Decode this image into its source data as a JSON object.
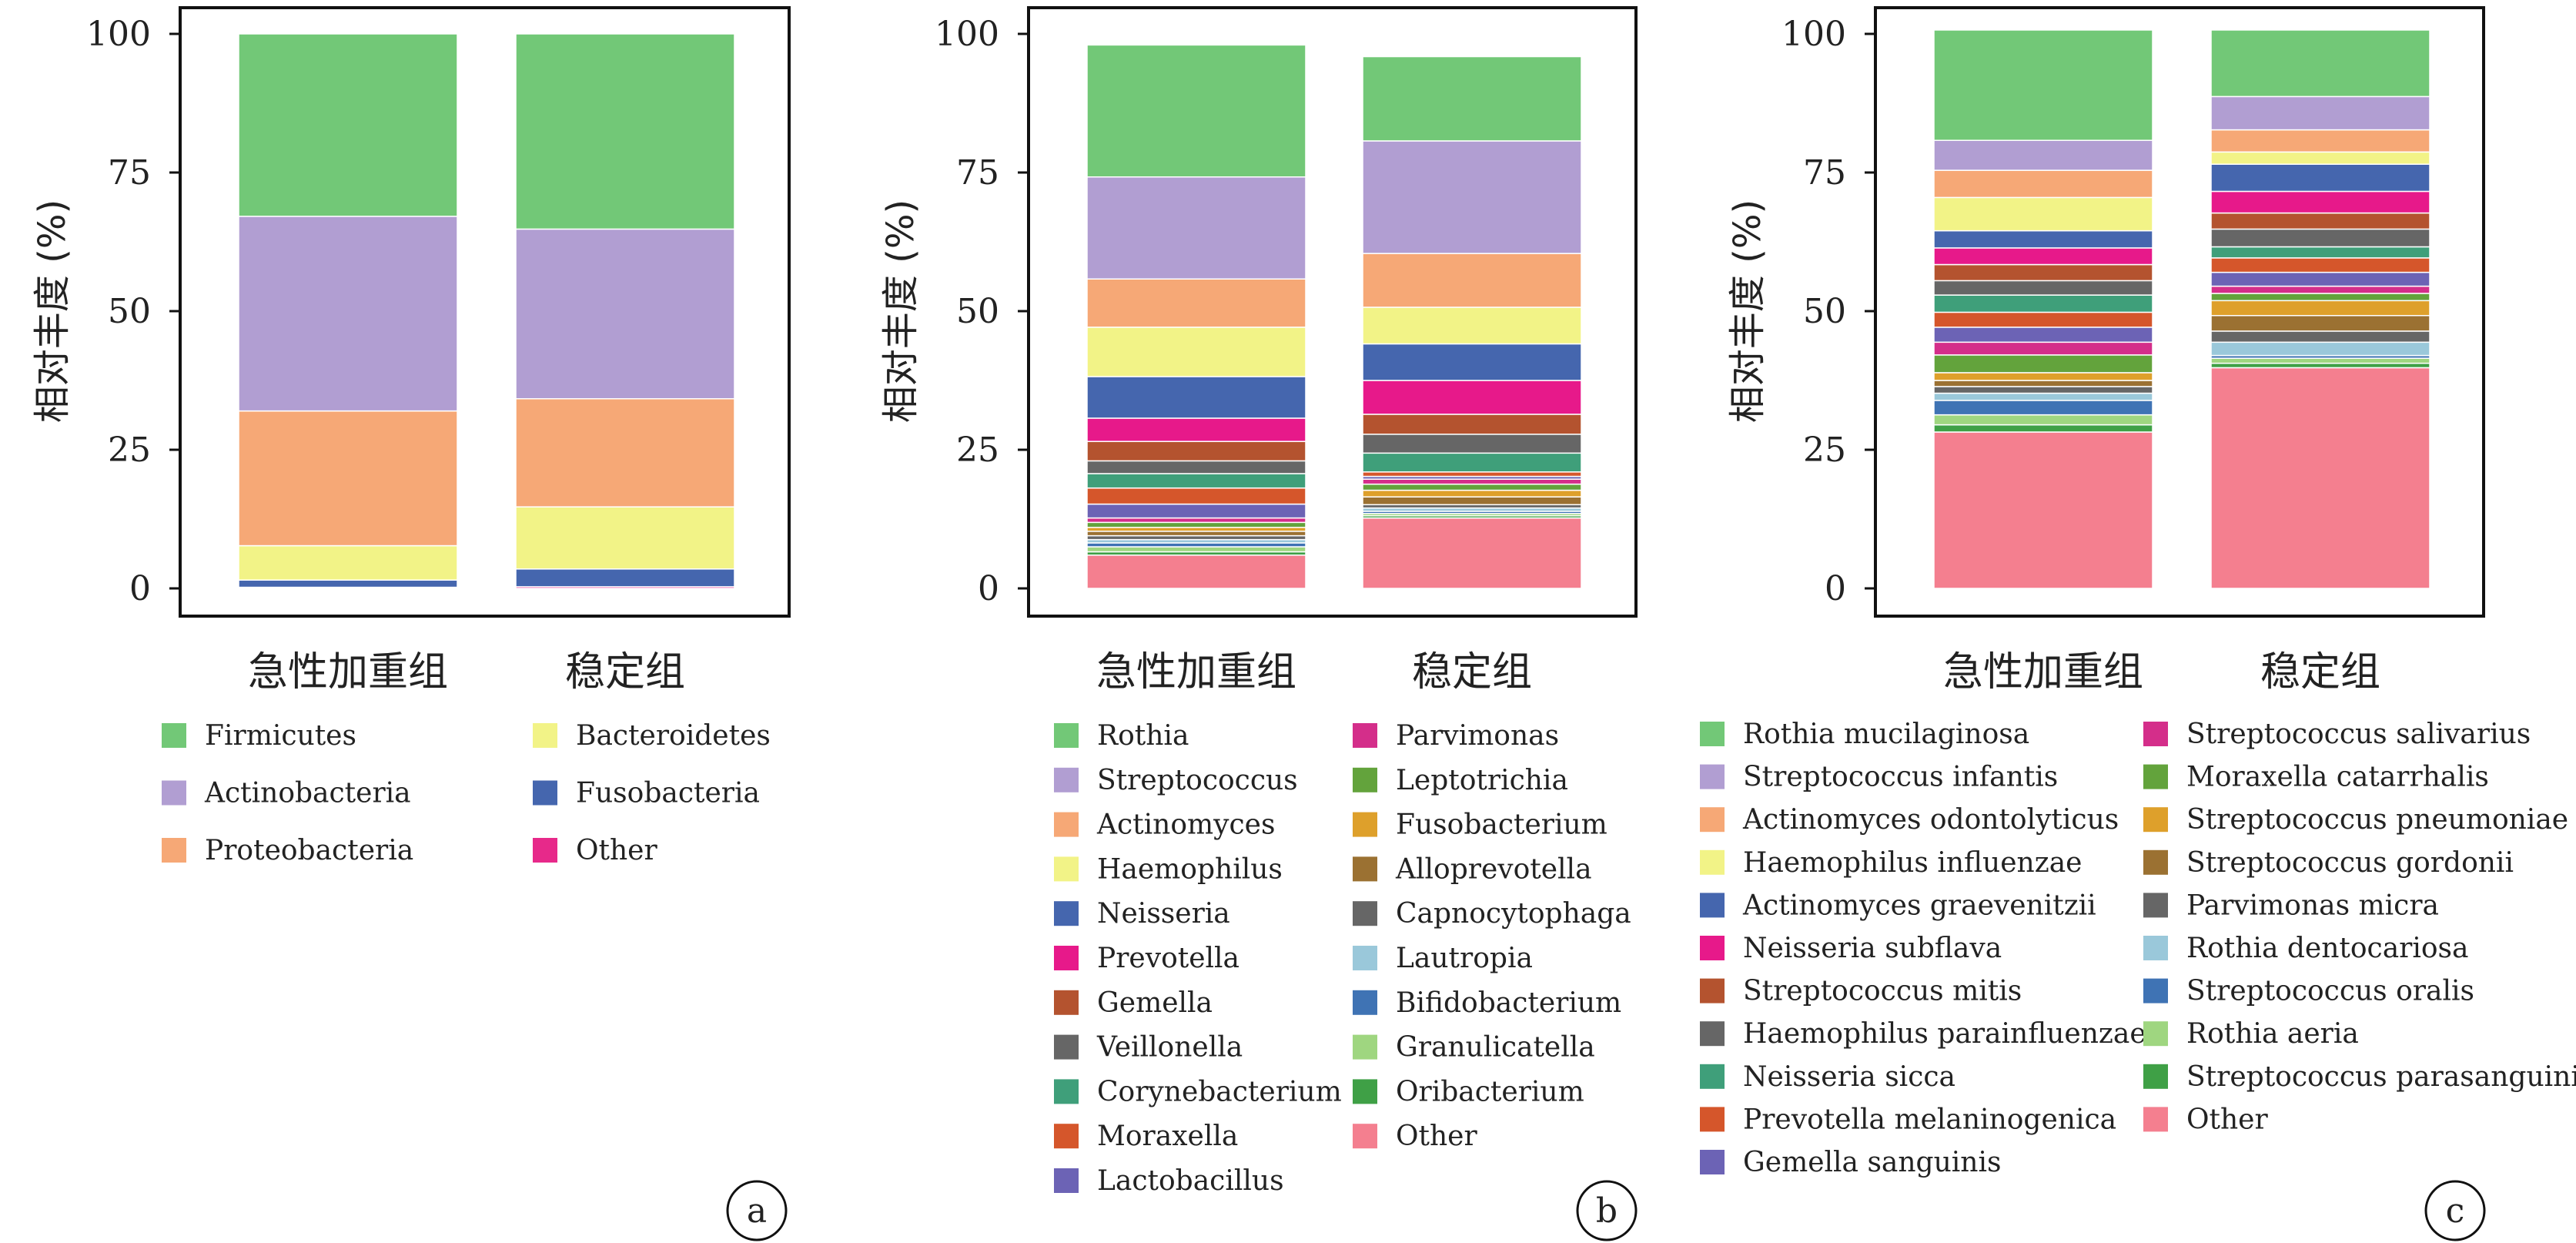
{
  "chart_data": [
    {
      "type": "bar",
      "stacked": true,
      "panel_label": "a",
      "ylabel": "相对丰度 (%)",
      "ylim": [
        0,
        100
      ],
      "yticks": [
        0,
        25,
        50,
        75,
        100
      ],
      "categories": [
        "急性加重组",
        "稳定组"
      ],
      "legend_columns": 2,
      "series": [
        {
          "name": "Other",
          "color": "#e7298a",
          "values": [
            0.2,
            0.3
          ]
        },
        {
          "name": "Fusobacteria",
          "color": "#4566ae",
          "values": [
            1.3,
            3.2
          ]
        },
        {
          "name": "Bacteroidetes",
          "color": "#f2f387",
          "values": [
            6.2,
            11.2
          ]
        },
        {
          "name": "Proteobacteria",
          "color": "#f6a876",
          "values": [
            24.3,
            19.5
          ]
        },
        {
          "name": "Actinobacteria",
          "color": "#b19ed2",
          "values": [
            35.1,
            30.6
          ]
        },
        {
          "name": "Firmicutes",
          "color": "#72c877",
          "values": [
            32.9,
            35.2
          ]
        }
      ],
      "legend_order": [
        "Firmicutes",
        "Actinobacteria",
        "Proteobacteria",
        "Bacteroidetes",
        "Fusobacteria",
        "Other"
      ]
    },
    {
      "type": "bar",
      "stacked": true,
      "panel_label": "b",
      "ylabel": "相对丰度 (%)",
      "ylim": [
        0,
        100
      ],
      "yticks": [
        0,
        25,
        50,
        75,
        100
      ],
      "categories": [
        "急性加重组",
        "稳定组"
      ],
      "legend_columns": 2,
      "series": [
        {
          "name": "Other",
          "color": "#f47f8f",
          "values": [
            6.0,
            12.7
          ]
        },
        {
          "name": "Oribacterium",
          "color": "#3fa046",
          "values": [
            0.6,
            0.4
          ]
        },
        {
          "name": "Granulicatella",
          "color": "#9fd680",
          "values": [
            0.9,
            0.4
          ]
        },
        {
          "name": "Bifidobacterium",
          "color": "#3f73b4",
          "values": [
            0.7,
            0.4
          ]
        },
        {
          "name": "Lautropia",
          "color": "#9ac8da",
          "values": [
            0.6,
            0.6
          ]
        },
        {
          "name": "Capnocytophaga",
          "color": "#666666",
          "values": [
            0.7,
            0.6
          ]
        },
        {
          "name": "Alloprevotella",
          "color": "#9b7132",
          "values": [
            0.8,
            1.4
          ]
        },
        {
          "name": "Fusobacterium",
          "color": "#dea02b",
          "values": [
            0.7,
            1.2
          ]
        },
        {
          "name": "Leptotrichia",
          "color": "#63a33c",
          "values": [
            0.9,
            1.1
          ]
        },
        {
          "name": "Parvimonas",
          "color": "#d42e8a",
          "values": [
            0.8,
            0.9
          ]
        },
        {
          "name": "Lactobacillus",
          "color": "#6c63b5",
          "values": [
            2.5,
            0.5
          ]
        },
        {
          "name": "Moraxella",
          "color": "#d5562b",
          "values": [
            2.9,
            0.8
          ]
        },
        {
          "name": "Corynebacterium",
          "color": "#3f9f7a",
          "values": [
            2.6,
            3.4
          ]
        },
        {
          "name": "Veillonella",
          "color": "#666666",
          "values": [
            2.3,
            3.4
          ]
        },
        {
          "name": "Gemella",
          "color": "#b4532f",
          "values": [
            3.5,
            3.6
          ]
        },
        {
          "name": "Prevotella",
          "color": "#e7198a",
          "values": [
            4.2,
            6.1
          ]
        },
        {
          "name": "Neisseria",
          "color": "#4566ae",
          "values": [
            7.5,
            6.6
          ]
        },
        {
          "name": "Haemophilus",
          "color": "#f2f387",
          "values": [
            8.9,
            6.6
          ]
        },
        {
          "name": "Actinomyces",
          "color": "#f6a876",
          "values": [
            8.7,
            9.7
          ]
        },
        {
          "name": "Streptococcus",
          "color": "#b19ed2",
          "values": [
            18.4,
            20.3
          ]
        },
        {
          "name": "Rothia",
          "color": "#72c877",
          "values": [
            23.8,
            15.2
          ]
        }
      ],
      "legend_order": [
        "Rothia",
        "Streptococcus",
        "Actinomyces",
        "Haemophilus",
        "Neisseria",
        "Prevotella",
        "Gemella",
        "Veillonella",
        "Corynebacterium",
        "Moraxella",
        "Lactobacillus",
        "Parvimonas",
        "Leptotrichia",
        "Fusobacterium",
        "Alloprevotella",
        "Capnocytophaga",
        "Lautropia",
        "Bifidobacterium",
        "Granulicatella",
        "Oribacterium",
        "Other"
      ]
    },
    {
      "type": "bar",
      "stacked": true,
      "panel_label": "c",
      "ylabel": "相对丰度 (%)",
      "ylim": [
        0,
        100
      ],
      "yticks": [
        0,
        25,
        50,
        75,
        100
      ],
      "categories": [
        "急性加重组",
        "稳定组"
      ],
      "legend_columns": 2,
      "series": [
        {
          "name": "Other",
          "color": "#f47f8f",
          "values": [
            28.2,
            39.8
          ]
        },
        {
          "name": "Streptococcus parasanguinis",
          "color": "#3fa046",
          "values": [
            1.3,
            0.8
          ]
        },
        {
          "name": "Rothia aeria",
          "color": "#9fd680",
          "values": [
            1.8,
            0.9
          ]
        },
        {
          "name": "Streptococcus oralis",
          "color": "#3f73b4",
          "values": [
            2.6,
            0.5
          ]
        },
        {
          "name": "Rothia dentocariosa",
          "color": "#9ac8da",
          "values": [
            1.3,
            2.4
          ]
        },
        {
          "name": "Parvimonas micra",
          "color": "#666666",
          "values": [
            1.2,
            2.0
          ]
        },
        {
          "name": "Streptococcus gordonii",
          "color": "#9b7132",
          "values": [
            1.1,
            2.8
          ]
        },
        {
          "name": "Streptococcus pneumoniae",
          "color": "#dea02b",
          "values": [
            1.4,
            2.7
          ]
        },
        {
          "name": "Moraxella catarrhalis",
          "color": "#63a33c",
          "values": [
            3.2,
            1.3
          ]
        },
        {
          "name": "Streptococcus salivarius",
          "color": "#d42e8a",
          "values": [
            2.3,
            1.3
          ]
        },
        {
          "name": "Gemella sanguinis",
          "color": "#6c63b5",
          "values": [
            2.7,
            2.5
          ]
        },
        {
          "name": "Prevotella melaninogenica",
          "color": "#d5562b",
          "values": [
            2.7,
            2.6
          ]
        },
        {
          "name": "Neisseria sicca",
          "color": "#3f9f7a",
          "values": [
            3.1,
            2.0
          ]
        },
        {
          "name": "Haemophilus parainfluenzae",
          "color": "#666666",
          "values": [
            2.6,
            3.2
          ]
        },
        {
          "name": "Streptococcus mitis",
          "color": "#b4532f",
          "values": [
            2.9,
            2.9
          ]
        },
        {
          "name": "Neisseria subflava",
          "color": "#e7198a",
          "values": [
            3.0,
            3.9
          ]
        },
        {
          "name": "Actinomyces graevenitzii",
          "color": "#4566ae",
          "values": [
            3.1,
            4.9
          ]
        },
        {
          "name": "Haemophilus influenzae",
          "color": "#f2f387",
          "values": [
            6.0,
            2.2
          ]
        },
        {
          "name": "Actinomyces odontolyticus",
          "color": "#f6a876",
          "values": [
            4.9,
            4.0
          ]
        },
        {
          "name": "Streptococcus infantis",
          "color": "#b19ed2",
          "values": [
            5.4,
            6.0
          ]
        },
        {
          "name": "Rothia mucilaginosa",
          "color": "#72c877",
          "values": [
            19.9,
            12.0
          ]
        }
      ],
      "legend_order": [
        "Rothia mucilaginosa",
        "Streptococcus infantis",
        "Actinomyces odontolyticus",
        "Haemophilus influenzae",
        "Actinomyces graevenitzii",
        "Neisseria subflava",
        "Streptococcus mitis",
        "Haemophilus parainfluenzae",
        "Neisseria sicca",
        "Prevotella melaninogenica",
        "Gemella sanguinis",
        "Streptococcus salivarius",
        "Moraxella catarrhalis",
        "Streptococcus pneumoniae",
        "Streptococcus gordonii",
        "Parvimonas micra",
        "Rothia dentocariosa",
        "Streptococcus oralis",
        "Rothia aeria",
        "Streptococcus parasanguinis",
        "Other"
      ]
    }
  ]
}
